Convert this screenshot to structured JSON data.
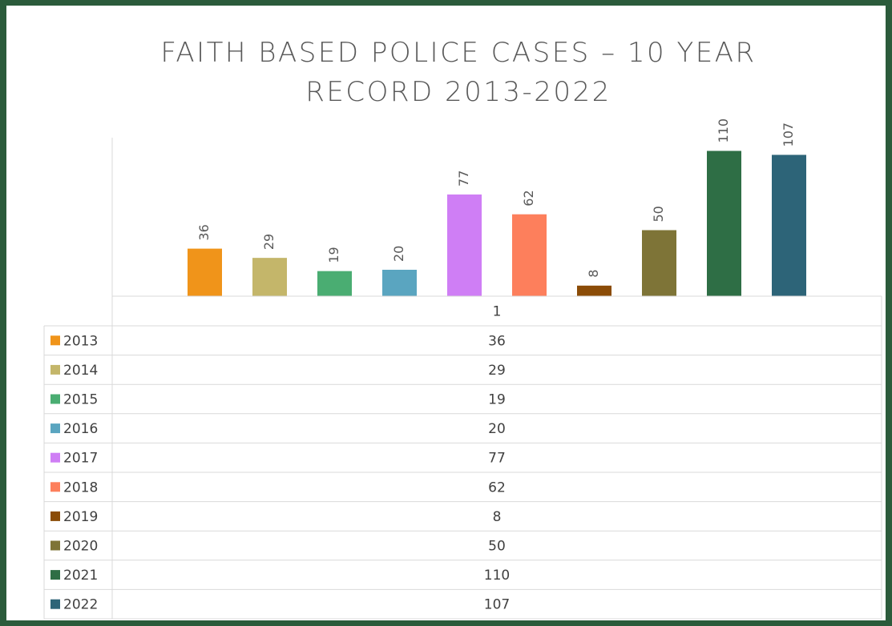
{
  "chart_data": {
    "type": "bar",
    "title": "FAITH BASED POLICE CASES – 10 YEAR RECORD 2013-2022",
    "categories": [
      "1"
    ],
    "ylim": [
      0,
      120
    ],
    "series": [
      {
        "name": "2013",
        "color": "#f0941a",
        "values": [
          36
        ]
      },
      {
        "name": "2014",
        "color": "#c4b66a",
        "values": [
          29
        ]
      },
      {
        "name": "2015",
        "color": "#4aad72",
        "values": [
          19
        ]
      },
      {
        "name": "2016",
        "color": "#5aa5c0",
        "values": [
          20
        ]
      },
      {
        "name": "2017",
        "color": "#cf7ef5",
        "values": [
          77
        ]
      },
      {
        "name": "2018",
        "color": "#fd7f5c",
        "values": [
          62
        ]
      },
      {
        "name": "2019",
        "color": "#8b4c07",
        "values": [
          8
        ]
      },
      {
        "name": "2020",
        "color": "#7e7437",
        "values": [
          50
        ]
      },
      {
        "name": "2021",
        "color": "#2e6e45",
        "values": [
          110
        ]
      },
      {
        "name": "2022",
        "color": "#2d6478",
        "values": [
          107
        ]
      }
    ]
  }
}
